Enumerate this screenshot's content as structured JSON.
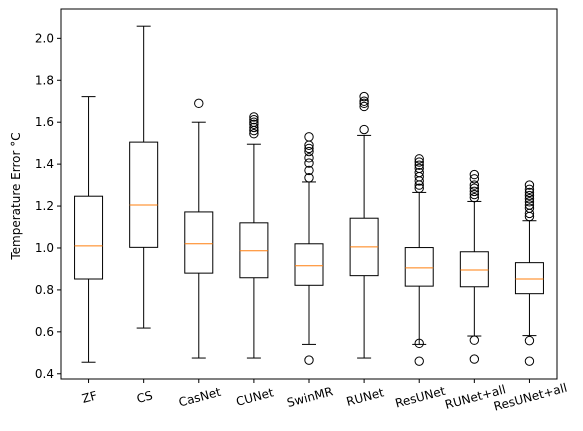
{
  "chart_data": {
    "type": "boxplot",
    "title": "",
    "xlabel": "",
    "ylabel": "Temperature Error °C",
    "ylim": [
      0.375,
      2.14
    ],
    "yticks": [
      0.4,
      0.6,
      0.8,
      1.0,
      1.2,
      1.4,
      1.6,
      1.8,
      2.0
    ],
    "ytick_labels": [
      "0.4",
      "0.6",
      "0.8",
      "1.0",
      "1.2",
      "1.4",
      "1.6",
      "1.8",
      "2.0"
    ],
    "categories": [
      "ZF",
      "CS",
      "CasNet",
      "CUNet",
      "SwinMR",
      "RUNet",
      "ResUNet",
      "RUNet+all",
      "ResUNet+all"
    ],
    "median_color": "#ff7f0e",
    "box_color": "#000000",
    "boxes": [
      {
        "label": "ZF",
        "whislo": 0.455,
        "q1": 0.852,
        "med": 1.01,
        "q3": 1.247,
        "whishi": 1.722,
        "fliers": []
      },
      {
        "label": "CS",
        "whislo": 0.618,
        "q1": 1.003,
        "med": 1.205,
        "q3": 1.505,
        "whishi": 2.058,
        "fliers": []
      },
      {
        "label": "CasNet",
        "whislo": 0.475,
        "q1": 0.88,
        "med": 1.02,
        "q3": 1.172,
        "whishi": 1.6,
        "fliers": [
          1.69
        ]
      },
      {
        "label": "CUNet",
        "whislo": 0.475,
        "q1": 0.858,
        "med": 0.987,
        "q3": 1.12,
        "whishi": 1.495,
        "fliers": [
          1.545,
          1.56,
          1.575,
          1.59,
          1.6,
          1.612,
          1.625
        ]
      },
      {
        "label": "SwinMR",
        "whislo": 0.54,
        "q1": 0.822,
        "med": 0.915,
        "q3": 1.02,
        "whishi": 1.315,
        "fliers": [
          0.465,
          1.335,
          1.37,
          1.405,
          1.43,
          1.46,
          1.475,
          1.49,
          1.53
        ]
      },
      {
        "label": "RUNet",
        "whislo": 0.475,
        "q1": 0.868,
        "med": 1.005,
        "q3": 1.142,
        "whishi": 1.537,
        "fliers": [
          1.565,
          1.675,
          1.69,
          1.7,
          1.722
        ]
      },
      {
        "label": "ResUNet",
        "whislo": 0.54,
        "q1": 0.818,
        "med": 0.905,
        "q3": 1.002,
        "whishi": 1.265,
        "fliers": [
          0.46,
          0.545,
          1.285,
          1.3,
          1.32,
          1.34,
          1.36,
          1.38,
          1.395,
          1.41,
          1.425
        ]
      },
      {
        "label": "RUNet+all",
        "whislo": 0.58,
        "q1": 0.815,
        "med": 0.895,
        "q3": 0.982,
        "whishi": 1.222,
        "fliers": [
          0.47,
          0.56,
          1.24,
          1.255,
          1.27,
          1.285,
          1.3,
          1.33,
          1.35
        ]
      },
      {
        "label": "ResUNet+all",
        "whislo": 0.582,
        "q1": 0.782,
        "med": 0.852,
        "q3": 0.93,
        "whishi": 1.13,
        "fliers": [
          0.46,
          0.558,
          1.15,
          1.165,
          1.19,
          1.205,
          1.22,
          1.235,
          1.25,
          1.265,
          1.28,
          1.3
        ]
      }
    ]
  }
}
